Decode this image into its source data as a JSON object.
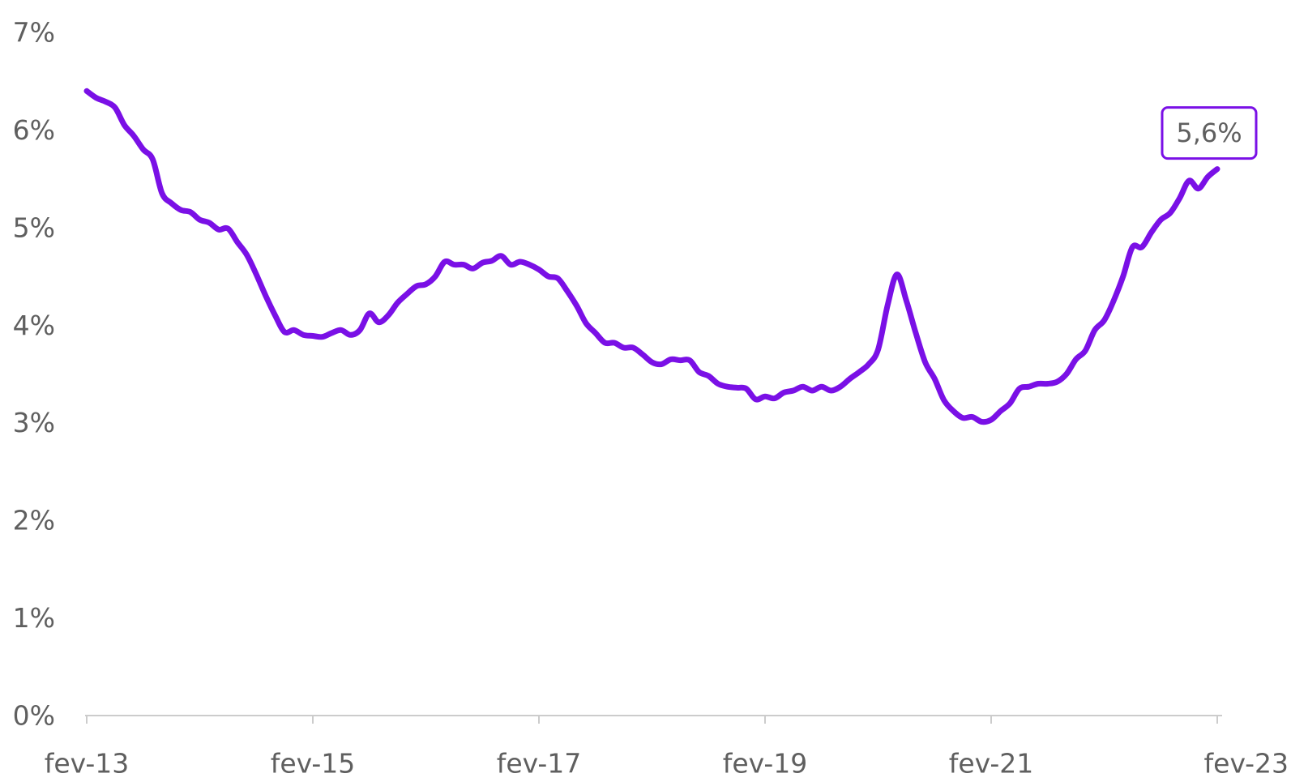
{
  "colors": {
    "series": "#7a10e6",
    "axis": "#cccccc",
    "text": "#5f5f5f"
  },
  "chart_data": {
    "type": "line",
    "title": "",
    "xlabel": "",
    "ylabel": "",
    "ylim": [
      0,
      7
    ],
    "xlim": [
      "2013-02",
      "2023-02"
    ],
    "grid": false,
    "y_ticks": [
      {
        "value": 0,
        "label": "0%"
      },
      {
        "value": 1,
        "label": "1%"
      },
      {
        "value": 2,
        "label": "2%"
      },
      {
        "value": 3,
        "label": "3%"
      },
      {
        "value": 4,
        "label": "4%"
      },
      {
        "value": 5,
        "label": "5%"
      },
      {
        "value": 6,
        "label": "6%"
      },
      {
        "value": 7,
        "label": "7%"
      }
    ],
    "x_ticks": [
      {
        "value": "2013-02",
        "label": "fev-13"
      },
      {
        "value": "2015-02",
        "label": "fev-15"
      },
      {
        "value": "2017-02",
        "label": "fev-17"
      },
      {
        "value": "2019-02",
        "label": "fev-19"
      },
      {
        "value": "2021-02",
        "label": "fev-21"
      },
      {
        "value": "2023-02",
        "label": "fev-23"
      }
    ],
    "series": [
      {
        "color": "#7a10e6",
        "points": [
          [
            "2013-02",
            6.4
          ],
          [
            "2013-03",
            6.33
          ],
          [
            "2013-04",
            6.29
          ],
          [
            "2013-05",
            6.23
          ],
          [
            "2013-06",
            6.05
          ],
          [
            "2013-07",
            5.94
          ],
          [
            "2013-08",
            5.8
          ],
          [
            "2013-09",
            5.7
          ],
          [
            "2013-10",
            5.35
          ],
          [
            "2013-11",
            5.25
          ],
          [
            "2013-12",
            5.18
          ],
          [
            "2014-01",
            5.16
          ],
          [
            "2014-02",
            5.08
          ],
          [
            "2014-03",
            5.05
          ],
          [
            "2014-04",
            4.98
          ],
          [
            "2014-05",
            4.99
          ],
          [
            "2014-06",
            4.85
          ],
          [
            "2014-07",
            4.72
          ],
          [
            "2014-08",
            4.52
          ],
          [
            "2014-09",
            4.3
          ],
          [
            "2014-10",
            4.1
          ],
          [
            "2014-11",
            3.93
          ],
          [
            "2014-12",
            3.95
          ],
          [
            "2015-01",
            3.9
          ],
          [
            "2015-02",
            3.89
          ],
          [
            "2015-03",
            3.88
          ],
          [
            "2015-04",
            3.92
          ],
          [
            "2015-05",
            3.95
          ],
          [
            "2015-06",
            3.9
          ],
          [
            "2015-07",
            3.95
          ],
          [
            "2015-08",
            4.12
          ],
          [
            "2015-09",
            4.03
          ],
          [
            "2015-10",
            4.1
          ],
          [
            "2015-11",
            4.23
          ],
          [
            "2015-12",
            4.32
          ],
          [
            "2016-01",
            4.4
          ],
          [
            "2016-02",
            4.42
          ],
          [
            "2016-03",
            4.5
          ],
          [
            "2016-04",
            4.65
          ],
          [
            "2016-05",
            4.62
          ],
          [
            "2016-06",
            4.62
          ],
          [
            "2016-07",
            4.58
          ],
          [
            "2016-08",
            4.64
          ],
          [
            "2016-09",
            4.66
          ],
          [
            "2016-10",
            4.71
          ],
          [
            "2016-11",
            4.62
          ],
          [
            "2016-12",
            4.65
          ],
          [
            "2017-01",
            4.62
          ],
          [
            "2017-02",
            4.57
          ],
          [
            "2017-03",
            4.5
          ],
          [
            "2017-04",
            4.48
          ],
          [
            "2017-05",
            4.35
          ],
          [
            "2017-06",
            4.2
          ],
          [
            "2017-07",
            4.02
          ],
          [
            "2017-08",
            3.92
          ],
          [
            "2017-09",
            3.82
          ],
          [
            "2017-10",
            3.82
          ],
          [
            "2017-11",
            3.77
          ],
          [
            "2017-12",
            3.77
          ],
          [
            "2018-01",
            3.7
          ],
          [
            "2018-02",
            3.62
          ],
          [
            "2018-03",
            3.6
          ],
          [
            "2018-04",
            3.65
          ],
          [
            "2018-05",
            3.64
          ],
          [
            "2018-06",
            3.64
          ],
          [
            "2018-07",
            3.52
          ],
          [
            "2018-08",
            3.48
          ],
          [
            "2018-09",
            3.4
          ],
          [
            "2018-10",
            3.37
          ],
          [
            "2018-11",
            3.36
          ],
          [
            "2018-12",
            3.35
          ],
          [
            "2019-01",
            3.24
          ],
          [
            "2019-02",
            3.27
          ],
          [
            "2019-03",
            3.25
          ],
          [
            "2019-04",
            3.31
          ],
          [
            "2019-05",
            3.33
          ],
          [
            "2019-06",
            3.37
          ],
          [
            "2019-07",
            3.33
          ],
          [
            "2019-08",
            3.37
          ],
          [
            "2019-09",
            3.33
          ],
          [
            "2019-10",
            3.37
          ],
          [
            "2019-11",
            3.45
          ],
          [
            "2019-12",
            3.52
          ],
          [
            "2020-01",
            3.6
          ],
          [
            "2020-02",
            3.75
          ],
          [
            "2020-03",
            4.2
          ],
          [
            "2020-04",
            4.52
          ],
          [
            "2020-05",
            4.25
          ],
          [
            "2020-06",
            3.92
          ],
          [
            "2020-07",
            3.62
          ],
          [
            "2020-08",
            3.45
          ],
          [
            "2020-09",
            3.23
          ],
          [
            "2020-10",
            3.12
          ],
          [
            "2020-11",
            3.05
          ],
          [
            "2020-12",
            3.06
          ],
          [
            "2021-01",
            3.01
          ],
          [
            "2021-02",
            3.03
          ],
          [
            "2021-03",
            3.12
          ],
          [
            "2021-04",
            3.2
          ],
          [
            "2021-05",
            3.35
          ],
          [
            "2021-06",
            3.37
          ],
          [
            "2021-07",
            3.4
          ],
          [
            "2021-08",
            3.4
          ],
          [
            "2021-09",
            3.42
          ],
          [
            "2021-10",
            3.5
          ],
          [
            "2021-11",
            3.65
          ],
          [
            "2021-12",
            3.74
          ],
          [
            "2022-01",
            3.95
          ],
          [
            "2022-02",
            4.05
          ],
          [
            "2022-03",
            4.25
          ],
          [
            "2022-04",
            4.5
          ],
          [
            "2022-05",
            4.8
          ],
          [
            "2022-06",
            4.8
          ],
          [
            "2022-07",
            4.95
          ],
          [
            "2022-08",
            5.08
          ],
          [
            "2022-09",
            5.15
          ],
          [
            "2022-10",
            5.3
          ],
          [
            "2022-11",
            5.48
          ],
          [
            "2022-12",
            5.4
          ],
          [
            "2023-01",
            5.52
          ],
          [
            "2023-02",
            5.6
          ]
        ]
      }
    ],
    "annotations": [
      {
        "x": "2023-02",
        "y": 5.6,
        "label": "5,6%"
      }
    ]
  }
}
